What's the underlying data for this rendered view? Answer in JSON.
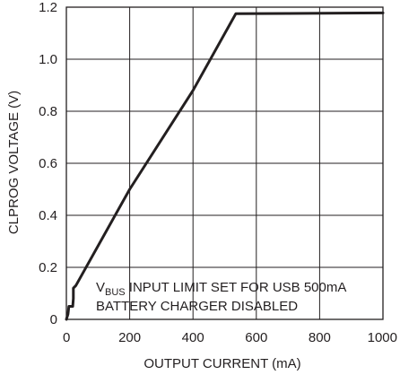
{
  "chart_data": {
    "type": "line",
    "title": "",
    "xlabel": "OUTPUT CURRENT (mA)",
    "ylabel": "CLPROG VOLTAGE (V)",
    "xlim": [
      0,
      1000
    ],
    "ylim": [
      0,
      1.2
    ],
    "x_ticks": [
      "0",
      "200",
      "400",
      "600",
      "800",
      "1000"
    ],
    "y_ticks": [
      "0",
      "0.2",
      "0.4",
      "0.6",
      "0.8",
      "1.0",
      "1.2"
    ],
    "grid": true,
    "series": [
      {
        "x": [
          0,
          5,
          8,
          12,
          20,
          22,
          22,
          30,
          200,
          400,
          535,
          700,
          1000
        ],
        "y": [
          0,
          0.02,
          0.05,
          0.05,
          0.05,
          0.08,
          0.12,
          0.13,
          0.5,
          0.88,
          1.175,
          1.176,
          1.178
        ]
      }
    ],
    "annotation": {
      "line1_sub_prefix": "V",
      "line1_sub": "BUS",
      "line1_rest": " INPUT LIMIT SET FOR USB 500mA",
      "line2": "BATTERY CHARGER DISABLED"
    },
    "colors": {
      "line": "#231f20",
      "grid": "#231f20",
      "background": "#ffffff"
    }
  }
}
